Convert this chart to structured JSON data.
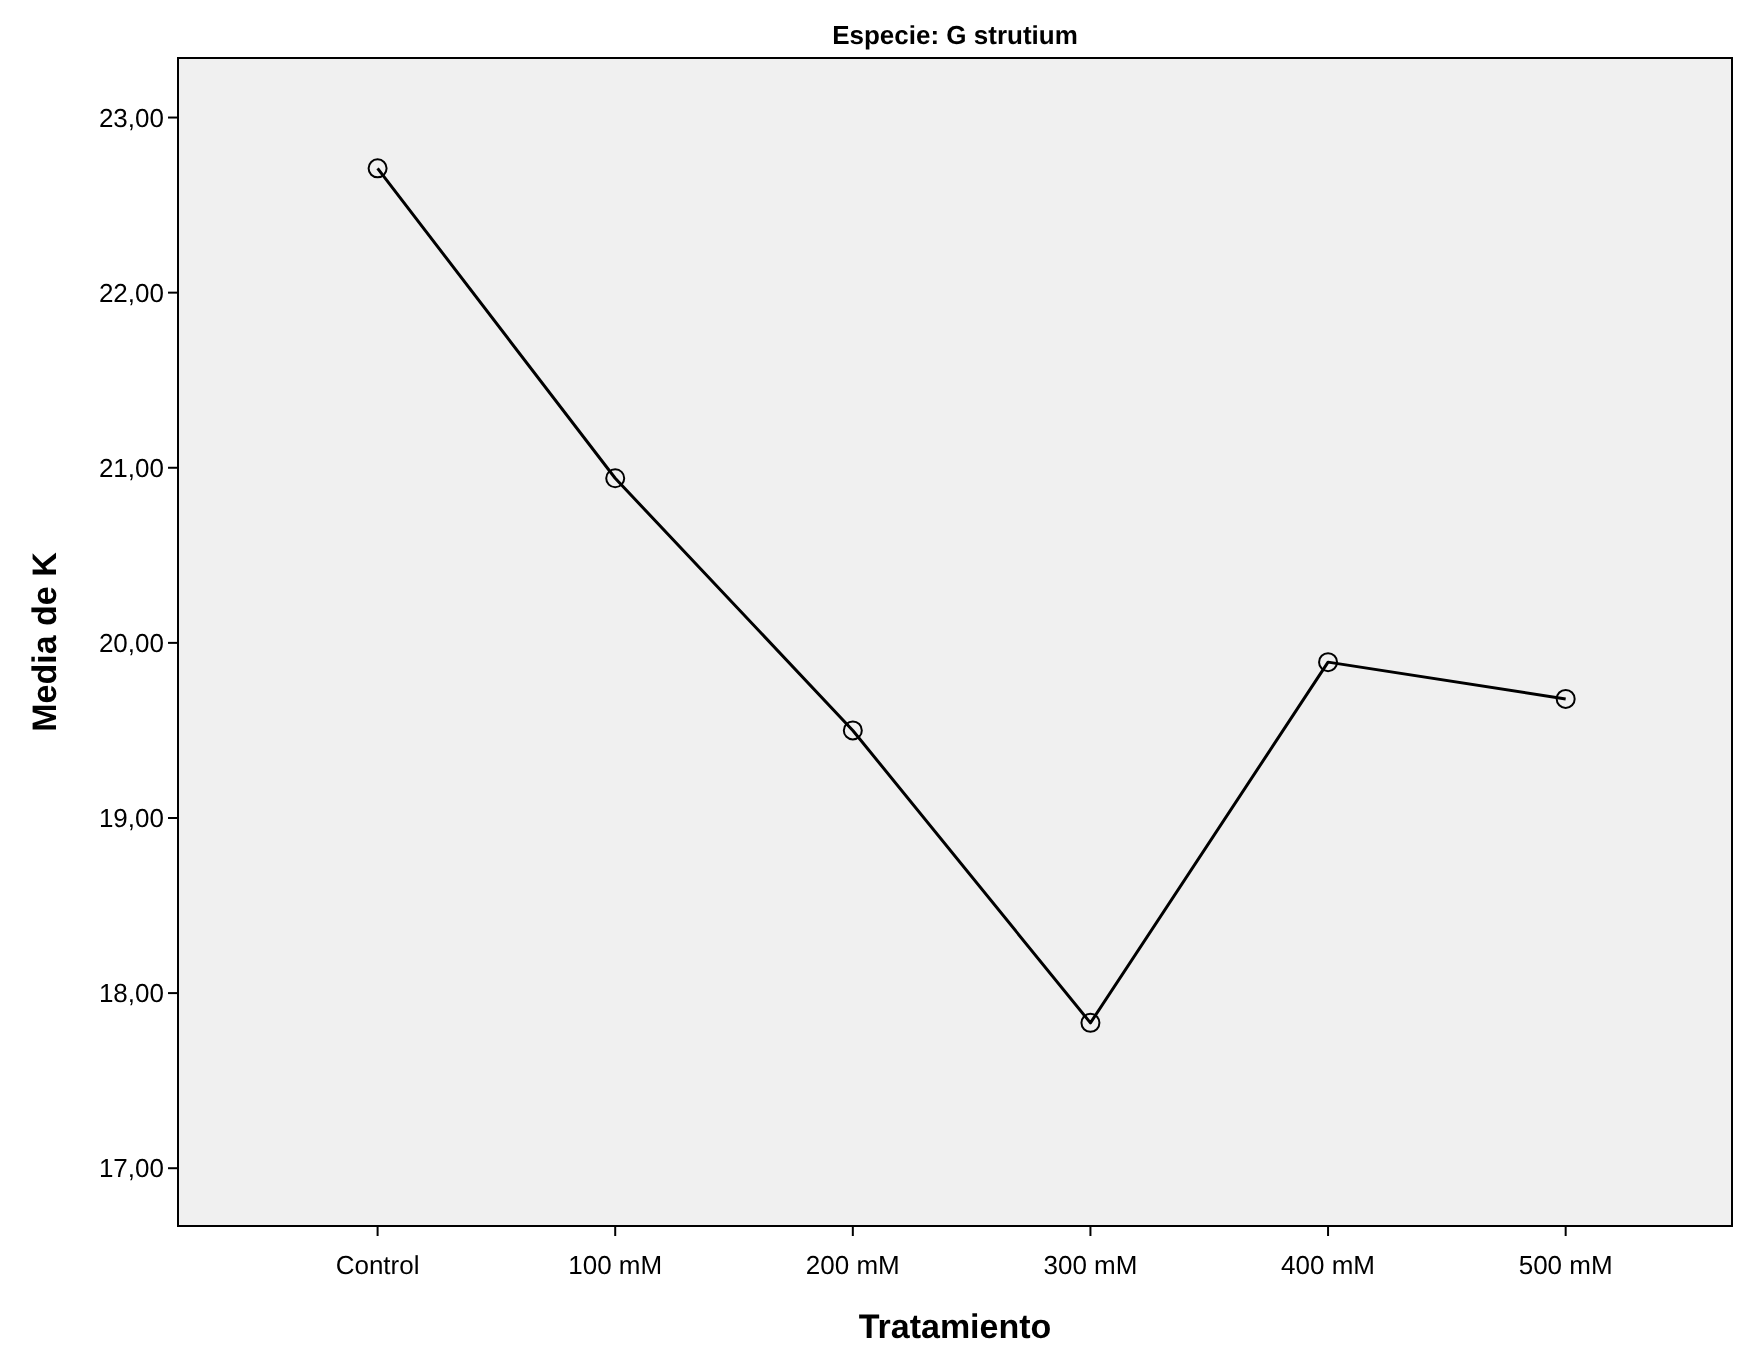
{
  "chart_data": {
    "type": "line",
    "title": "Especie: G strutium",
    "xlabel": "Tratamiento",
    "ylabel": "Media de K",
    "categories": [
      "Control",
      "100 mM",
      "200 mM",
      "300 mM",
      "400 mM",
      "500 mM"
    ],
    "series": [
      {
        "color": "#000000",
        "values": [
          22.71,
          20.94,
          19.5,
          17.83,
          19.89,
          19.68
        ]
      }
    ],
    "ylim": [
      16.67,
      23.34
    ],
    "yticks": [
      {
        "value": 17,
        "label": "17,00"
      },
      {
        "value": 18,
        "label": "18,00"
      },
      {
        "value": 19,
        "label": "19,00"
      },
      {
        "value": 20,
        "label": "20,00"
      },
      {
        "value": 21,
        "label": "21,00"
      },
      {
        "value": 22,
        "label": "22,00"
      },
      {
        "value": 23,
        "label": "23,00"
      }
    ],
    "grid": false,
    "marker": "circle",
    "line_style": "solid"
  }
}
